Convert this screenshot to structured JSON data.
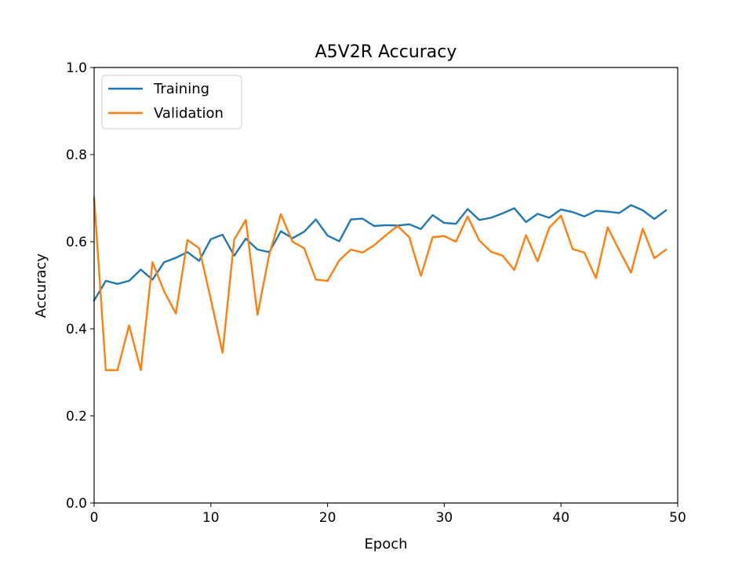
{
  "chart_data": {
    "type": "line",
    "title": "A5V2R Accuracy",
    "xlabel": "Epoch",
    "ylabel": "Accuracy",
    "xlim": [
      0,
      50
    ],
    "ylim": [
      0,
      1.0
    ],
    "xticks": [
      "0",
      "10",
      "20",
      "30",
      "40",
      "50"
    ],
    "yticks": [
      "0.0",
      "0.2",
      "0.4",
      "0.6",
      "0.8",
      "1.0"
    ],
    "grid": false,
    "legend_position": "upper left",
    "x": [
      0,
      1,
      2,
      3,
      4,
      5,
      6,
      7,
      8,
      9,
      10,
      11,
      12,
      13,
      14,
      15,
      16,
      17,
      18,
      19,
      20,
      21,
      22,
      23,
      24,
      25,
      26,
      27,
      28,
      29,
      30,
      31,
      32,
      33,
      34,
      35,
      36,
      37,
      38,
      39,
      40,
      41,
      42,
      43,
      44,
      45,
      46,
      47,
      48,
      49
    ],
    "series": [
      {
        "name": "Training",
        "color": "#1f77b4",
        "values": [
          0.465,
          0.51,
          0.503,
          0.51,
          0.536,
          0.513,
          0.553,
          0.563,
          0.576,
          0.556,
          0.606,
          0.616,
          0.568,
          0.607,
          0.582,
          0.576,
          0.624,
          0.608,
          0.623,
          0.651,
          0.614,
          0.601,
          0.651,
          0.653,
          0.636,
          0.638,
          0.637,
          0.64,
          0.629,
          0.661,
          0.643,
          0.641,
          0.675,
          0.65,
          0.655,
          0.665,
          0.677,
          0.645,
          0.664,
          0.655,
          0.674,
          0.668,
          0.658,
          0.671,
          0.669,
          0.666,
          0.684,
          0.672,
          0.652,
          0.672
        ]
      },
      {
        "name": "Validation",
        "color": "#ff7f0e",
        "values": [
          0.7,
          0.305,
          0.305,
          0.408,
          0.305,
          0.553,
          0.486,
          0.435,
          0.604,
          0.585,
          0.468,
          0.345,
          0.605,
          0.65,
          0.432,
          0.57,
          0.663,
          0.6,
          0.585,
          0.513,
          0.51,
          0.557,
          0.582,
          0.575,
          0.592,
          0.615,
          0.636,
          0.61,
          0.521,
          0.61,
          0.613,
          0.6,
          0.658,
          0.603,
          0.577,
          0.568,
          0.535,
          0.615,
          0.555,
          0.632,
          0.66,
          0.583,
          0.575,
          0.516,
          0.633,
          0.58,
          0.529,
          0.63,
          0.562,
          0.582
        ]
      }
    ]
  }
}
